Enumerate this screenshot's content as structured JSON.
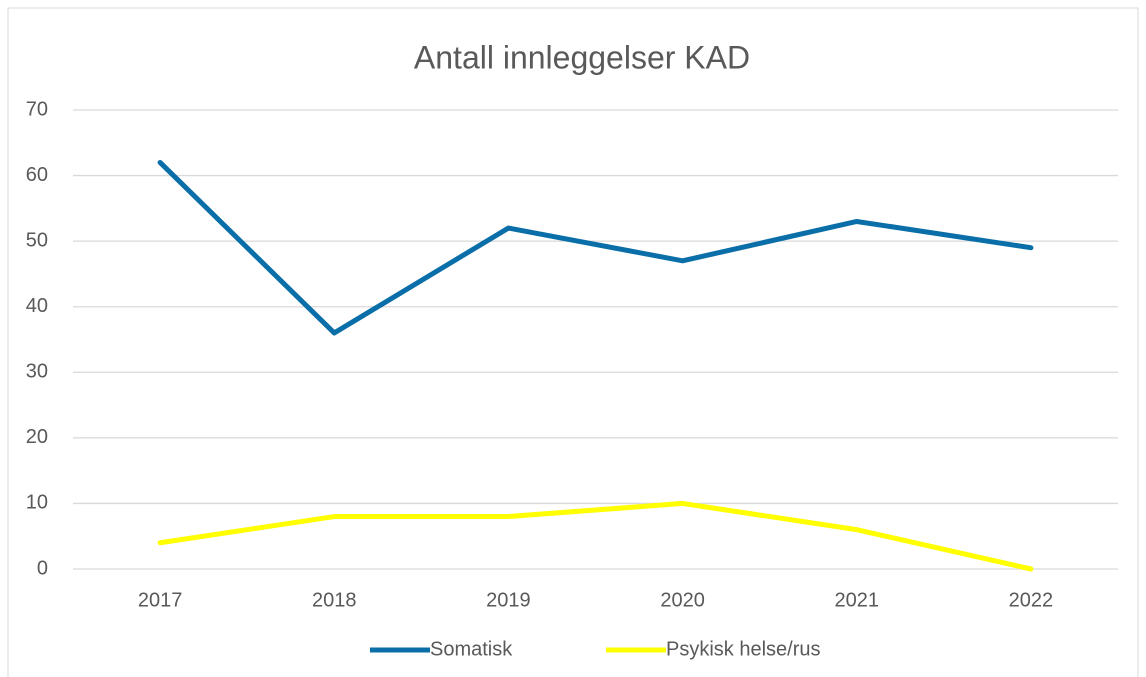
{
  "chart_data": {
    "type": "line",
    "title": "Antall innleggelser KAD",
    "categories": [
      "2017",
      "2018",
      "2019",
      "2020",
      "2021",
      "2022"
    ],
    "series": [
      {
        "name": "Somatisk",
        "color": "#0a6ea8",
        "values": [
          62,
          36,
          52,
          47,
          53,
          49
        ]
      },
      {
        "name": "Psykisk helse/rus",
        "color": "#ffff00",
        "values": [
          4,
          8,
          8,
          10,
          6,
          0
        ]
      }
    ],
    "ylim": [
      0,
      70
    ],
    "yticks": [
      0,
      10,
      20,
      30,
      40,
      50,
      60,
      70
    ],
    "grid": true,
    "legend": "bottom"
  }
}
